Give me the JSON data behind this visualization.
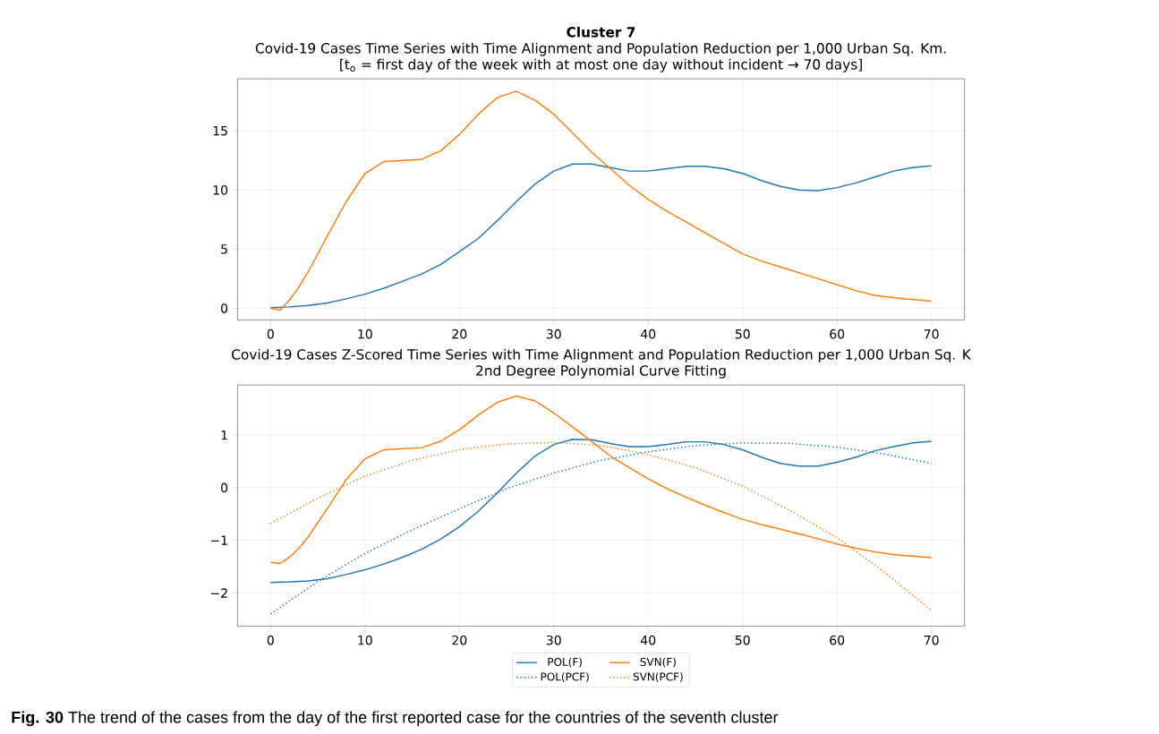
{
  "chart_data": [
    {
      "type": "line",
      "title": "Cluster 7",
      "subtitle": "Covid-19 Cases Time Series with Time Alignment and Population Reduction per 1,000 Urban Sq. Km.",
      "annotations": [
        "[t$_{o}$ = first day of the week with at most one day without incident  →  70 days]"
      ],
      "xlim": [
        -3.5,
        73.5
      ],
      "ylim": [
        -0.98,
        19.4
      ],
      "xticks": [
        0,
        10,
        20,
        30,
        40,
        50,
        60,
        70
      ],
      "yticks": [
        0,
        5,
        10,
        15
      ],
      "grid": true,
      "legend": false,
      "series": [
        {
          "color": "#1f77b4",
          "line_style": "solid",
          "x": [
            0,
            2,
            4,
            6,
            8,
            10,
            12,
            14,
            16,
            18,
            20,
            22,
            24,
            26,
            28,
            30,
            32,
            34,
            36,
            38,
            40,
            42,
            44,
            46,
            48,
            50,
            52,
            54,
            56,
            58,
            60,
            62,
            64,
            66,
            68,
            70
          ],
          "values": [
            0.05,
            0.12,
            0.25,
            0.45,
            0.8,
            1.2,
            1.7,
            2.3,
            2.9,
            3.7,
            4.8,
            5.9,
            7.4,
            9.0,
            10.5,
            11.6,
            12.2,
            12.2,
            11.9,
            11.6,
            11.6,
            11.8,
            12.0,
            12.0,
            11.8,
            11.4,
            10.8,
            10.3,
            10.0,
            9.95,
            10.2,
            10.6,
            11.1,
            11.6,
            11.9,
            12.05
          ]
        },
        {
          "color": "#ff7f0e",
          "line_style": "solid",
          "x": [
            0,
            1,
            2,
            3,
            4,
            6,
            8,
            10,
            12,
            14,
            16,
            18,
            20,
            22,
            24,
            26,
            28,
            30,
            32,
            34,
            36,
            38,
            40,
            42,
            44,
            46,
            48,
            50,
            52,
            54,
            56,
            58,
            60,
            62,
            64,
            66,
            68,
            70
          ],
          "values": [
            0.0,
            -0.15,
            0.7,
            1.8,
            3.1,
            6.1,
            9.0,
            11.4,
            12.4,
            12.5,
            12.6,
            13.3,
            14.7,
            16.4,
            17.8,
            18.35,
            17.6,
            16.4,
            14.8,
            13.2,
            11.8,
            10.4,
            9.2,
            8.2,
            7.3,
            6.4,
            5.5,
            4.6,
            4.0,
            3.5,
            3.0,
            2.5,
            2.0,
            1.5,
            1.1,
            0.9,
            0.75,
            0.6
          ]
        }
      ]
    },
    {
      "type": "line",
      "title": "Covid-19 Cases Z-Scored Time Series with Time Alignment and Population Reduction per 1,000 Urban Sq. K",
      "subtitle": "2nd Degree Polynomial Curve Fitting",
      "annotations": [
        "**Fig. 30** The trend of the cases from the day of the first reported case for the countries of the seventh cluster"
      ],
      "xlim": [
        -3.5,
        73.5
      ],
      "ylim": [
        -2.63,
        1.95
      ],
      "xticks": [
        0,
        10,
        20,
        30,
        40,
        50,
        60,
        70
      ],
      "yticks": [
        {
          "value": -2,
          "label": "−2"
        },
        {
          "value": -1,
          "label": "−1"
        },
        0,
        1
      ],
      "grid": true,
      "legend": "bottom",
      "series": [
        {
          "name": "POL(F)",
          "color": "#1f77b4",
          "line_style": "solid",
          "x": [
            0,
            2,
            4,
            6,
            8,
            10,
            12,
            14,
            16,
            18,
            20,
            22,
            24,
            26,
            28,
            30,
            32,
            34,
            36,
            38,
            40,
            42,
            44,
            46,
            48,
            50,
            52,
            54,
            56,
            58,
            60,
            62,
            64,
            66,
            68,
            70
          ],
          "values": [
            -1.8,
            -1.79,
            -1.77,
            -1.73,
            -1.65,
            -1.56,
            -1.45,
            -1.32,
            -1.17,
            -0.98,
            -0.74,
            -0.45,
            -0.1,
            0.27,
            0.6,
            0.82,
            0.92,
            0.91,
            0.84,
            0.78,
            0.78,
            0.82,
            0.87,
            0.87,
            0.82,
            0.72,
            0.58,
            0.46,
            0.41,
            0.41,
            0.48,
            0.58,
            0.7,
            0.78,
            0.85,
            0.88
          ]
        },
        {
          "name": "SVN(F)",
          "color": "#ff7f0e",
          "line_style": "solid",
          "x": [
            0,
            1,
            2,
            3,
            4,
            6,
            8,
            10,
            12,
            14,
            16,
            18,
            20,
            22,
            24,
            26,
            28,
            30,
            32,
            34,
            36,
            38,
            40,
            42,
            44,
            46,
            48,
            50,
            52,
            54,
            56,
            58,
            60,
            62,
            64,
            66,
            68,
            70
          ],
          "values": [
            -1.42,
            -1.44,
            -1.32,
            -1.15,
            -0.93,
            -0.4,
            0.15,
            0.55,
            0.72,
            0.74,
            0.76,
            0.88,
            1.1,
            1.38,
            1.62,
            1.74,
            1.65,
            1.42,
            1.15,
            0.88,
            0.6,
            0.38,
            0.17,
            -0.02,
            -0.18,
            -0.33,
            -0.47,
            -0.6,
            -0.7,
            -0.79,
            -0.88,
            -0.97,
            -1.07,
            -1.15,
            -1.22,
            -1.27,
            -1.3,
            -1.33
          ]
        },
        {
          "name": "POL(PCF)",
          "color": "#1f77b4",
          "line_style": "dotted",
          "x": [
            0,
            5,
            10,
            15,
            20,
            25,
            30,
            35,
            40,
            45,
            50,
            55,
            60,
            65,
            70
          ],
          "values": [
            -2.4,
            -1.78,
            -1.25,
            -0.8,
            -0.4,
            -0.02,
            0.28,
            0.52,
            0.68,
            0.8,
            0.85,
            0.84,
            0.77,
            0.64,
            0.46
          ]
        },
        {
          "name": "SVN(PCF)",
          "color": "#ff7f0e",
          "line_style": "dotted",
          "x": [
            0,
            5,
            10,
            15,
            20,
            25,
            30,
            35,
            40,
            45,
            50,
            55,
            60,
            65,
            70
          ],
          "values": [
            -0.68,
            -0.2,
            0.22,
            0.52,
            0.72,
            0.83,
            0.86,
            0.8,
            0.63,
            0.38,
            0.03,
            -0.43,
            -0.95,
            -1.6,
            -2.33
          ]
        }
      ]
    }
  ]
}
